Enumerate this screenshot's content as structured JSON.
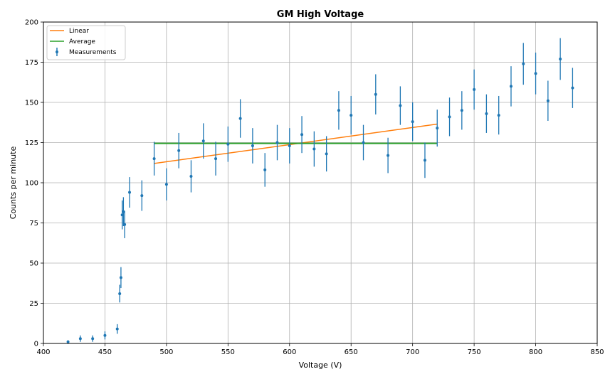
{
  "chart_data": {
    "type": "scatter",
    "title": "GM High Voltage",
    "xlabel": "Voltage (V)",
    "ylabel": "Counts per minute",
    "xlim": [
      400,
      850
    ],
    "ylim": [
      0,
      200
    ],
    "xticks": [
      400,
      450,
      500,
      550,
      600,
      650,
      700,
      750,
      800,
      850
    ],
    "yticks": [
      0,
      25,
      50,
      75,
      100,
      125,
      150,
      175,
      200
    ],
    "grid": true,
    "legend_position": "top-left",
    "legend": [
      "Linear",
      "Average",
      "Measurements"
    ],
    "colors": {
      "measurements": "#1f77b4",
      "linear": "#ff7f0e",
      "average": "#2ca02c"
    },
    "series": [
      {
        "name": "Measurements",
        "kind": "errorbar",
        "x": [
          420,
          430,
          440,
          450,
          460,
          462,
          463,
          464,
          465,
          466,
          470,
          480,
          490,
          500,
          510,
          520,
          530,
          540,
          550,
          560,
          570,
          580,
          590,
          600,
          610,
          620,
          630,
          640,
          650,
          660,
          670,
          680,
          690,
          700,
          710,
          720,
          730,
          740,
          750,
          760,
          770,
          780,
          790,
          800,
          810,
          820,
          830
        ],
        "y": [
          1,
          3,
          3,
          5,
          9,
          31,
          41,
          80,
          82,
          74,
          94,
          92,
          115,
          99,
          120,
          104,
          126,
          115,
          124,
          140,
          123,
          108,
          125,
          123,
          130,
          121,
          118,
          145,
          142,
          125,
          155,
          117,
          148,
          138,
          114,
          134,
          141,
          145,
          158,
          143,
          142,
          160,
          174,
          168,
          151,
          177,
          159
        ],
        "yerr": [
          1,
          2,
          2,
          2.5,
          3,
          5.5,
          6.5,
          9,
          9,
          8.5,
          9.5,
          9.5,
          10.5,
          10,
          11,
          10,
          11,
          10.5,
          11,
          12,
          11,
          10.5,
          11,
          11,
          11.5,
          11,
          11,
          12,
          12,
          11,
          12.5,
          11,
          12,
          12,
          11,
          11.5,
          12,
          12,
          12.5,
          12,
          12,
          12.5,
          13,
          13,
          12.5,
          13,
          12.5
        ]
      },
      {
        "name": "Linear",
        "kind": "line",
        "x": [
          490,
          720
        ],
        "y": [
          112,
          136.5
        ]
      },
      {
        "name": "Average",
        "kind": "line",
        "x": [
          490,
          720
        ],
        "y": [
          124.5,
          124.5
        ]
      }
    ]
  }
}
